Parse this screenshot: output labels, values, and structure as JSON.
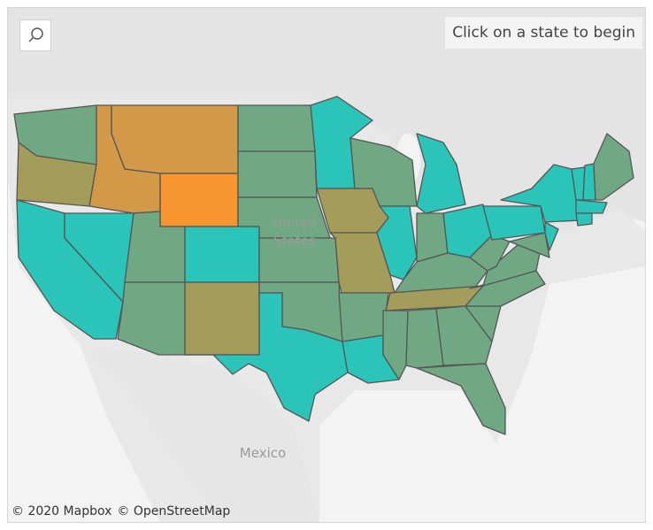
{
  "prompt": "Click on a state to begin",
  "country_labels": [
    {
      "lines": [
        "United",
        "States"
      ]
    },
    {
      "lines": [
        "Mexico"
      ]
    }
  ],
  "attribution": [
    "© 2020 Mapbox",
    "© OpenStreetMap"
  ]
}
